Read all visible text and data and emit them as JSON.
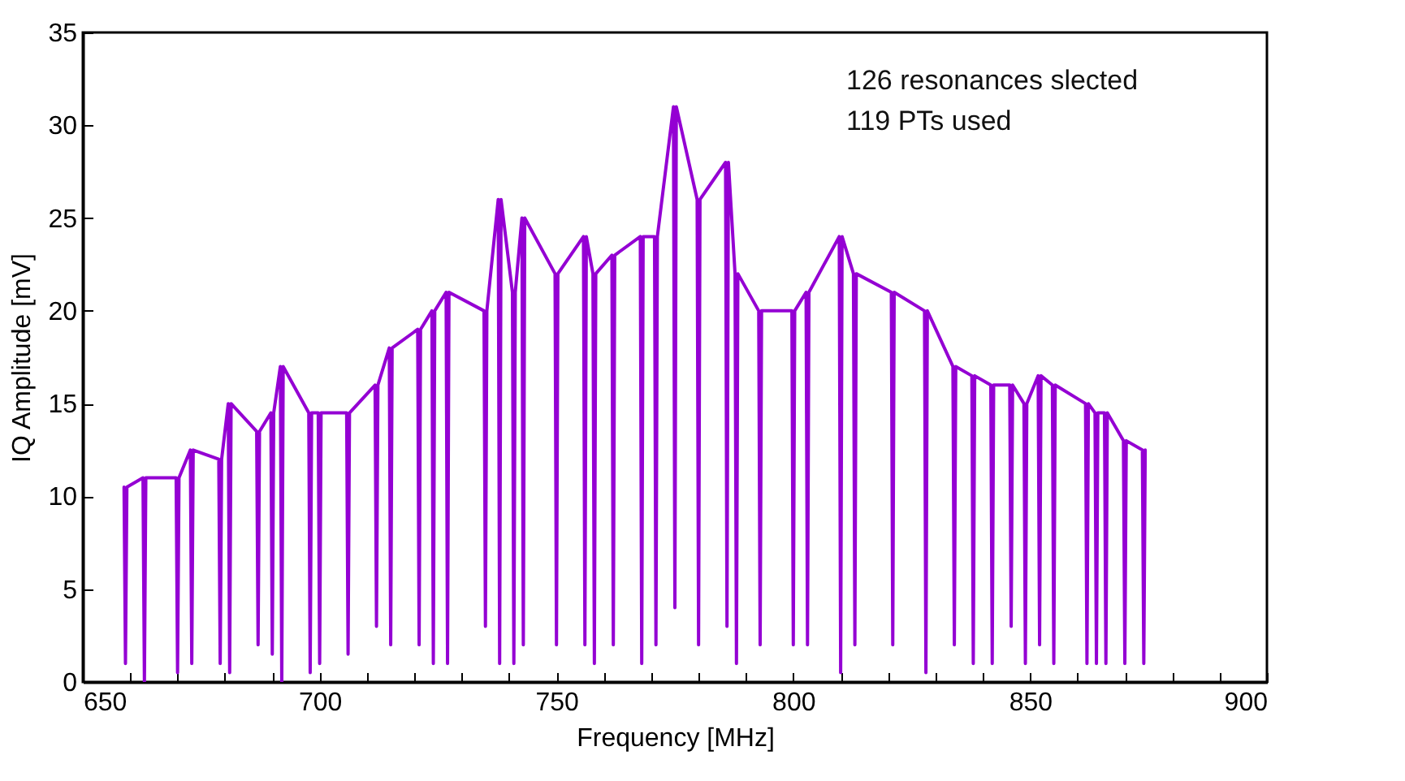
{
  "chart_data": {
    "type": "line",
    "xlabel": "Frequency [MHz]",
    "ylabel": "IQ Amplitude [mV]",
    "annotations": [
      "126 resonances slected",
      "119 PTs used"
    ],
    "xlim": [
      650,
      900
    ],
    "ylim": [
      0,
      35
    ],
    "xticks": [
      650,
      {
        "value": 660,
        "label": null
      },
      {
        "value": 670,
        "label": null
      },
      {
        "value": 680,
        "label": null
      },
      {
        "value": 690,
        "label": null
      },
      700,
      {
        "value": 710,
        "label": null
      },
      {
        "value": 720,
        "label": null
      },
      {
        "value": 730,
        "label": null
      },
      {
        "value": 740,
        "label": null
      },
      750,
      {
        "value": 760,
        "label": null
      },
      {
        "value": 770,
        "label": null
      },
      {
        "value": 780,
        "label": null
      },
      {
        "value": 790,
        "label": null
      },
      800,
      {
        "value": 810,
        "label": null
      },
      {
        "value": 820,
        "label": null
      },
      {
        "value": 830,
        "label": null
      },
      {
        "value": 840,
        "label": null
      },
      850,
      {
        "value": 860,
        "label": null
      },
      {
        "value": 870,
        "label": null
      },
      {
        "value": 880,
        "label": null
      },
      {
        "value": 890,
        "label": null
      },
      900
    ],
    "yticks": [
      0,
      5,
      10,
      15,
      20,
      25,
      30,
      35
    ],
    "grid": false,
    "marker": "none",
    "line_style": "solid",
    "x": [
      658.7,
      659,
      659.3,
      662.7,
      663,
      663.3,
      669.7,
      670,
      670.3,
      672.7,
      673,
      673.3,
      678.7,
      679,
      679.3,
      680.7,
      681,
      681.3,
      686.7,
      687,
      687.3,
      689.7,
      690,
      690.3,
      691.7,
      692,
      692.3,
      697.7,
      698,
      698.3,
      699.7,
      700,
      700.3,
      705.7,
      706,
      706.3,
      711.7,
      712,
      712.3,
      714.7,
      715,
      715.3,
      720.7,
      721,
      721.3,
      723.7,
      724,
      724.3,
      726.7,
      727,
      727.3,
      734.7,
      735,
      735.3,
      737.7,
      738,
      738.3,
      740.7,
      741,
      741.3,
      742.7,
      743,
      743.3,
      749.7,
      750,
      750.3,
      755.7,
      756,
      756.3,
      757.7,
      758,
      758.3,
      761.7,
      762,
      762.3,
      767.7,
      768,
      768.3,
      770.7,
      771,
      771.3,
      774.7,
      775,
      775.3,
      779.7,
      780,
      780.3,
      785.7,
      786,
      786.3,
      787.7,
      788,
      788.3,
      792.7,
      793,
      793.3,
      799.7,
      800,
      800.3,
      802.7,
      803,
      803.3,
      809.7,
      810,
      810.3,
      812.7,
      813,
      813.3,
      820.7,
      821,
      821.3,
      827.7,
      828,
      828.3,
      833.7,
      834,
      834.3,
      837.7,
      838,
      838.3,
      841.7,
      842,
      842.3,
      845.7,
      846,
      846.3,
      848.7,
      849,
      849.3,
      851.7,
      852,
      852.3,
      854.7,
      855,
      855.3,
      861.7,
      862,
      862.3,
      863.7,
      864,
      864.3,
      865.7,
      866,
      866.3,
      869.7,
      870,
      870.3,
      873.7,
      874,
      874.3
    ],
    "series": [
      {
        "color": "#9400d3",
        "values": [
          10.5,
          1,
          10.5,
          11,
          0,
          11,
          11,
          0.5,
          11,
          12.5,
          1,
          12.5,
          12,
          1,
          12,
          15,
          0.5,
          15,
          13.5,
          2,
          13.5,
          14.5,
          1.5,
          14.5,
          17,
          0,
          17,
          14.5,
          0.5,
          14.5,
          14.5,
          1,
          14.5,
          14.5,
          1.5,
          14.5,
          16,
          3,
          16,
          18,
          2,
          18,
          19,
          2,
          19,
          20,
          1,
          20,
          21,
          1,
          21,
          20,
          3,
          20,
          26,
          1,
          26,
          21,
          1,
          21,
          25,
          2,
          25,
          22,
          2,
          22,
          24,
          2,
          24,
          22,
          1,
          22,
          23,
          2,
          23,
          24,
          1,
          24,
          24,
          2,
          24,
          31,
          4,
          31,
          26,
          2,
          26,
          28,
          3,
          28,
          22,
          1,
          22,
          20,
          2,
          20,
          20,
          2,
          20,
          21,
          2,
          21,
          24,
          0.5,
          24,
          22,
          2,
          22,
          21,
          2,
          21,
          20,
          0.5,
          20,
          17,
          2,
          17,
          16.5,
          1,
          16.5,
          16,
          1,
          16,
          16,
          3,
          16,
          15,
          1,
          15,
          16.5,
          2,
          16.5,
          16,
          1,
          16,
          15,
          1,
          15,
          14.5,
          1,
          14.5,
          14.5,
          1,
          14.5,
          13,
          1,
          13,
          12.5,
          1,
          12.5
        ]
      }
    ]
  }
}
